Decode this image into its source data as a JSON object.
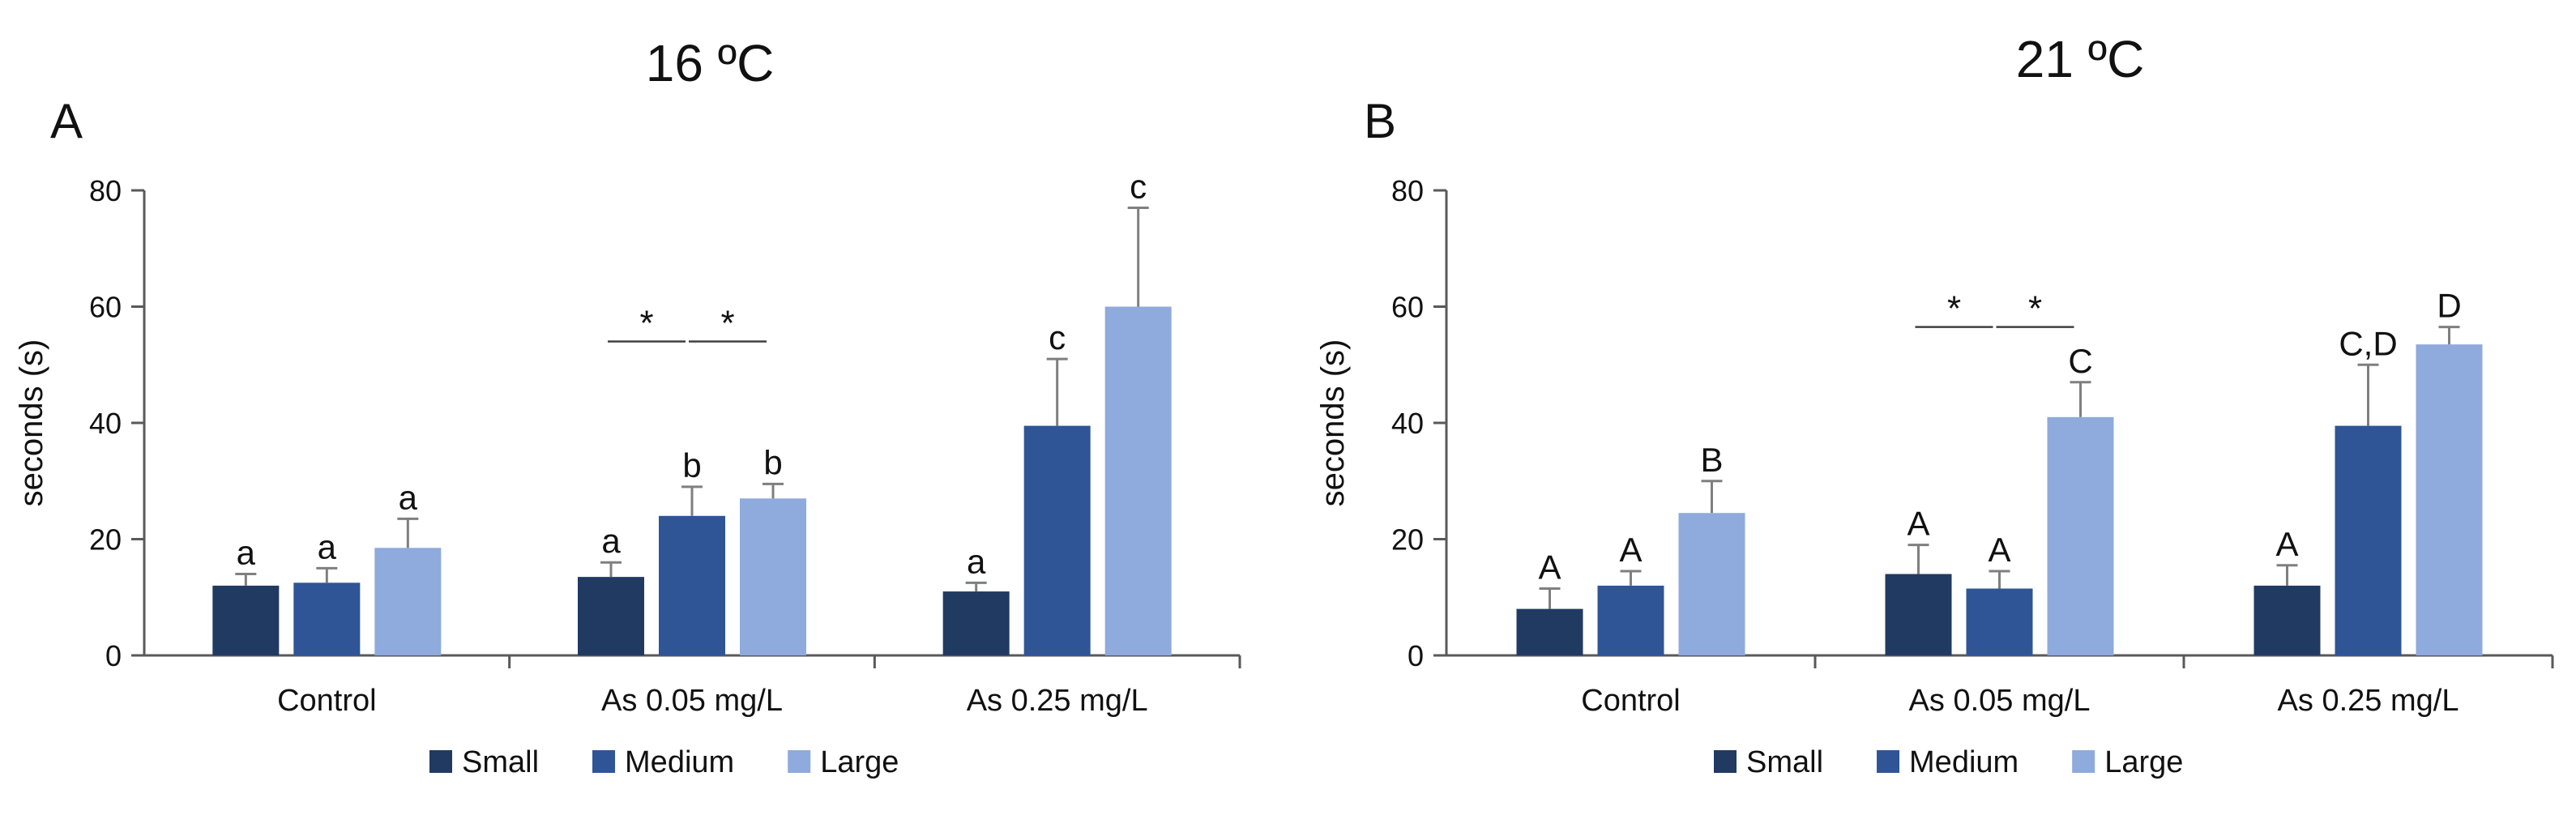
{
  "chart_data": [
    {
      "type": "bar",
      "panel": "A",
      "title": "16 ºC",
      "ylabel": "seconds (s)",
      "xlabel": "",
      "ylim": [
        0,
        80
      ],
      "yticks": [
        0,
        20,
        40,
        60,
        80
      ],
      "grid": false,
      "legend_position": "bottom",
      "categories": [
        "Control",
        "As 0.05 mg/L",
        "As 0.25 mg/L"
      ],
      "series": [
        {
          "name": "Small",
          "color": "#213a62",
          "values": [
            12,
            13.5,
            11
          ],
          "errors": [
            2,
            2.5,
            1.5
          ],
          "labels": [
            "a",
            "a",
            "a"
          ]
        },
        {
          "name": "Medium",
          "color": "#2f5597",
          "values": [
            12.5,
            24,
            39.5
          ],
          "errors": [
            2.5,
            5,
            11.5
          ],
          "labels": [
            "a",
            "b",
            "c"
          ]
        },
        {
          "name": "Large",
          "color": "#8faadc",
          "values": [
            18.5,
            27,
            60
          ],
          "errors": [
            5,
            2.5,
            17
          ],
          "labels": [
            "a",
            "b",
            "c"
          ]
        }
      ],
      "significance": [
        {
          "category": 1,
          "from": "Small",
          "to": "Medium",
          "label": "*",
          "y": 54
        },
        {
          "category": 1,
          "from": "Medium",
          "to": "Large",
          "label": "*",
          "y": 54
        }
      ]
    },
    {
      "type": "bar",
      "panel": "B",
      "title": "21 ºC",
      "ylabel": "seconds (s)",
      "xlabel": "",
      "ylim": [
        0,
        80
      ],
      "yticks": [
        0,
        20,
        40,
        60,
        80
      ],
      "grid": false,
      "legend_position": "bottom",
      "categories": [
        "Control",
        "As 0.05 mg/L",
        "As 0.25 mg/L"
      ],
      "series": [
        {
          "name": "Small",
          "color": "#213a62",
          "values": [
            8,
            14,
            12
          ],
          "errors": [
            3.5,
            5,
            3.5
          ],
          "labels": [
            "A",
            "A",
            "A"
          ]
        },
        {
          "name": "Medium",
          "color": "#2f5597",
          "values": [
            12,
            11.5,
            39.5
          ],
          "errors": [
            2.5,
            3,
            10.5
          ],
          "labels": [
            "A",
            "A",
            "C,D"
          ]
        },
        {
          "name": "Large",
          "color": "#8faadc",
          "values": [
            24.5,
            41,
            53.5
          ],
          "errors": [
            5.5,
            6,
            3
          ],
          "labels": [
            "B",
            "C",
            "D"
          ]
        }
      ],
      "significance": [
        {
          "category": 1,
          "from": "Small",
          "to": "Medium",
          "label": "*",
          "y": 56.5
        },
        {
          "category": 1,
          "from": "Medium",
          "to": "Large",
          "label": "*",
          "y": 56.5
        }
      ]
    }
  ]
}
